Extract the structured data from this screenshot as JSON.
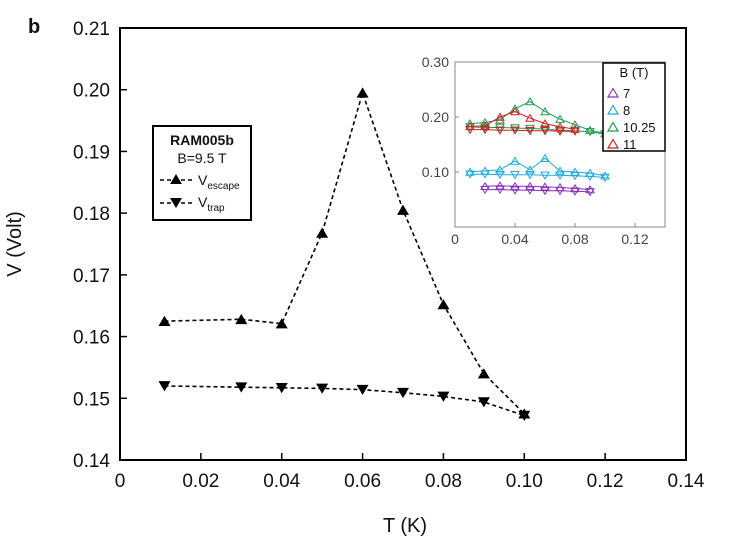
{
  "panel_label": "b",
  "chart_data": [
    {
      "type": "line",
      "name": "main",
      "xlabel": "T (K)",
      "ylabel": "V (Volt)",
      "xlim": [
        0,
        0.14
      ],
      "ylim": [
        0.14,
        0.21
      ],
      "xticks": [
        0,
        0.02,
        0.04,
        0.06,
        0.08,
        0.1,
        0.12,
        0.14
      ],
      "xtick_labels": [
        "0",
        "0.02",
        "0.04",
        "0.06",
        "0.08",
        "0.10",
        "0.12",
        "0.14"
      ],
      "yticks": [
        0.14,
        0.15,
        0.16,
        0.17,
        0.18,
        0.19,
        0.2,
        0.21
      ],
      "ytick_labels": [
        "0.14",
        "0.15",
        "0.16",
        "0.17",
        "0.18",
        "0.19",
        "0.20",
        "0.21"
      ],
      "legend": {
        "title": "RAM005b",
        "subtitle": "B=9.5 T",
        "entries": [
          {
            "main": "V",
            "sub": "escape"
          },
          {
            "main": "V",
            "sub": "trap"
          }
        ]
      },
      "series": [
        {
          "name": "V_escape",
          "marker": "triangle-up",
          "color": "#000000",
          "x": [
            0.011,
            0.03,
            0.04,
            0.05,
            0.06,
            0.07,
            0.08,
            0.09,
            0.1
          ],
          "y": [
            0.1625,
            0.1628,
            0.1621,
            0.1768,
            0.1995,
            0.1805,
            0.1652,
            0.154,
            0.1475
          ]
        },
        {
          "name": "V_trap",
          "marker": "triangle-down",
          "color": "#000000",
          "x": [
            0.011,
            0.03,
            0.04,
            0.05,
            0.06,
            0.07,
            0.08,
            0.09,
            0.1
          ],
          "y": [
            0.152,
            0.1518,
            0.1517,
            0.1516,
            0.1514,
            0.1509,
            0.1503,
            0.1494,
            0.1472
          ]
        }
      ]
    },
    {
      "type": "line",
      "name": "inset",
      "xlim": [
        0,
        0.14
      ],
      "ylim": [
        0,
        0.3
      ],
      "xticks": [
        0,
        0.04,
        0.08,
        0.12
      ],
      "xtick_labels": [
        "0",
        "0.04",
        "0.08",
        "0.12"
      ],
      "yticks": [
        0.1,
        0.2,
        0.3
      ],
      "ytick_labels": [
        "0.10",
        "0.20",
        "0.30"
      ],
      "legend_title": "B (T)",
      "series": [
        {
          "name": "7",
          "color": "#8833bb",
          "up": {
            "x": [
              0.02,
              0.03,
              0.04,
              0.05,
              0.06,
              0.07,
              0.08,
              0.09
            ],
            "y": [
              0.074,
              0.075,
              0.074,
              0.074,
              0.073,
              0.072,
              0.07,
              0.068
            ]
          },
          "down": {
            "x": [
              0.02,
              0.03,
              0.04,
              0.05,
              0.06,
              0.07,
              0.08,
              0.09
            ],
            "y": [
              0.068,
              0.068,
              0.067,
              0.067,
              0.066,
              0.066,
              0.065,
              0.064
            ]
          }
        },
        {
          "name": "8",
          "color": "#22aadd",
          "up": {
            "x": [
              0.01,
              0.02,
              0.03,
              0.04,
              0.05,
              0.06,
              0.07,
              0.08,
              0.09,
              0.1
            ],
            "y": [
              0.1,
              0.102,
              0.104,
              0.12,
              0.104,
              0.125,
              0.102,
              0.1,
              0.098,
              0.093
            ]
          },
          "down": {
            "x": [
              0.01,
              0.02,
              0.03,
              0.04,
              0.05,
              0.06,
              0.07,
              0.08,
              0.09,
              0.1
            ],
            "y": [
              0.096,
              0.096,
              0.095,
              0.095,
              0.095,
              0.094,
              0.094,
              0.093,
              0.092,
              0.09
            ]
          }
        },
        {
          "name": "10.25",
          "color": "#229955",
          "up": {
            "x": [
              0.01,
              0.02,
              0.03,
              0.04,
              0.05,
              0.06,
              0.07,
              0.08,
              0.09,
              0.1
            ],
            "y": [
              0.188,
              0.19,
              0.195,
              0.215,
              0.228,
              0.21,
              0.196,
              0.186,
              0.176,
              0.17
            ]
          },
          "down": {
            "x": [
              0.01,
              0.02,
              0.03,
              0.04,
              0.05,
              0.06,
              0.07,
              0.08,
              0.09,
              0.1
            ],
            "y": [
              0.182,
              0.181,
              0.181,
              0.18,
              0.179,
              0.178,
              0.176,
              0.175,
              0.173,
              0.169
            ]
          }
        },
        {
          "name": "11",
          "color": "#cc2222",
          "up": {
            "x": [
              0.01,
              0.02,
              0.03,
              0.04,
              0.05,
              0.06,
              0.07,
              0.08
            ],
            "y": [
              0.183,
              0.184,
              0.2,
              0.21,
              0.198,
              0.188,
              0.182,
              0.178
            ]
          },
          "down": {
            "x": [
              0.01,
              0.02,
              0.03,
              0.04,
              0.05,
              0.06,
              0.07,
              0.08
            ],
            "y": [
              0.177,
              0.177,
              0.176,
              0.176,
              0.175,
              0.175,
              0.174,
              0.174
            ]
          }
        }
      ]
    }
  ]
}
